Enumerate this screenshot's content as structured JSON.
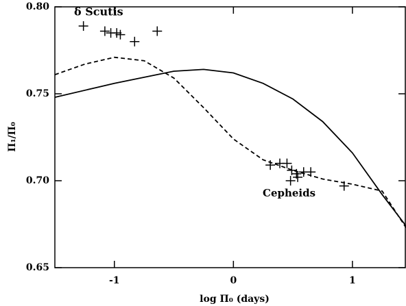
{
  "chart_data": {
    "type": "scatter",
    "x_label": "log Π₀ (days)",
    "y_label": "Π₁/Π₀",
    "annotations": [
      "δ Scutis",
      "Cepheids"
    ],
    "xlim": [
      -1.5,
      1.45
    ],
    "ylim": [
      0.65,
      0.8
    ],
    "xticks": [
      -1,
      0,
      1
    ],
    "yticks": [
      {
        "value": 0.65,
        "label": "0.65"
      },
      {
        "value": 0.7,
        "label": "0.70"
      },
      {
        "value": 0.75,
        "label": "0.75"
      },
      {
        "value": 0.8,
        "label": "0.80"
      }
    ],
    "series": [
      {
        "color": "#000000",
        "marker": "+",
        "x": [
          -1.26,
          -1.08,
          -1.03,
          -0.98,
          -0.95,
          -0.83,
          -0.64,
          0.31,
          0.39,
          0.45,
          0.49,
          0.53,
          0.59,
          0.65,
          0.48,
          0.54,
          0.93
        ],
        "values": [
          0.789,
          0.786,
          0.785,
          0.785,
          0.784,
          0.78,
          0.786,
          0.709,
          0.71,
          0.71,
          0.706,
          0.704,
          0.705,
          0.705,
          0.7,
          0.702,
          0.697
        ]
      },
      {
        "color": "#000000",
        "line": "solid",
        "x": [
          -1.5,
          -1.0,
          -0.5,
          -0.25,
          0,
          0.25,
          0.5,
          0.75,
          1.0,
          1.25,
          1.45
        ],
        "values": [
          0.748,
          0.756,
          0.763,
          0.764,
          0.762,
          0.756,
          0.747,
          0.734,
          0.716,
          0.692,
          0.674
        ]
      },
      {
        "color": "#000000",
        "line": "dashed",
        "x": [
          -1.5,
          -1.25,
          -1.0,
          -0.75,
          -0.5,
          -0.25,
          0,
          0.25,
          0.5,
          0.75,
          1.0,
          1.25,
          1.45
        ],
        "values": [
          0.761,
          0.767,
          0.771,
          0.769,
          0.759,
          0.742,
          0.724,
          0.712,
          0.706,
          0.701,
          0.698,
          0.694,
          0.673
        ]
      }
    ]
  }
}
